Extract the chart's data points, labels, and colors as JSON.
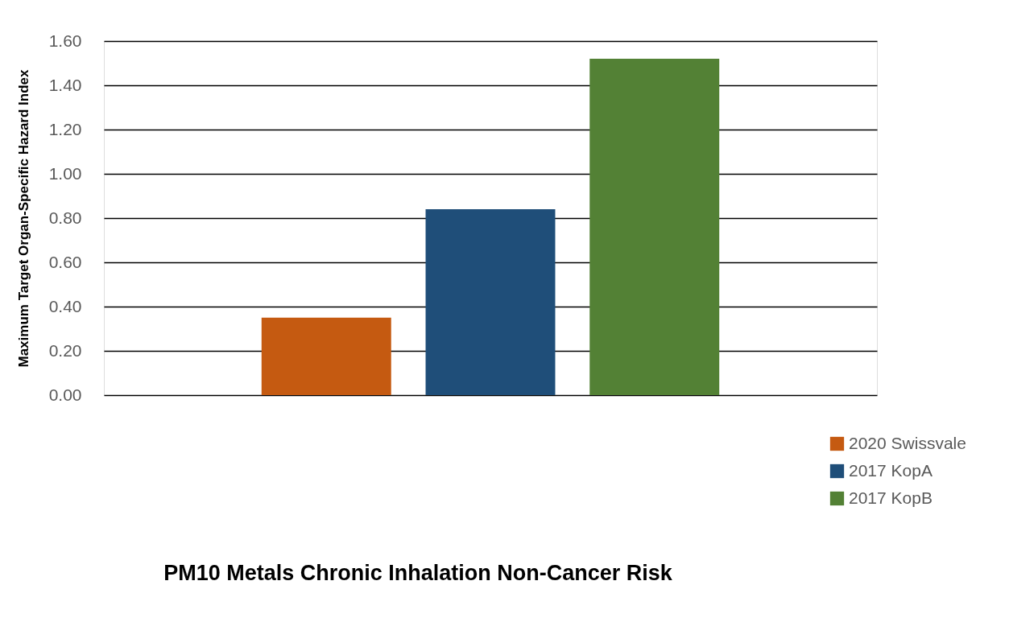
{
  "chart_data": {
    "type": "bar",
    "title": "PM10 Metals Chronic Inhalation Non-Cancer Risk",
    "ylabel": "Maximum Target Organ-Specific Hazard Index",
    "categories": [
      null
    ],
    "series": [
      {
        "name": "2020 Swissvale",
        "color": "#c55a11",
        "values": [
          0.35
        ]
      },
      {
        "name": "2017 KopA",
        "color": "#1f4e79",
        "values": [
          0.84
        ]
      },
      {
        "name": "2017 KopB",
        "color": "#538135",
        "values": [
          1.52
        ]
      }
    ],
    "ylim": [
      0,
      1.6
    ],
    "yticks": [
      {
        "value": 0,
        "label": "0.00"
      },
      {
        "value": 0.2,
        "label": "0.20"
      },
      {
        "value": 0.4,
        "label": "0.40"
      },
      {
        "value": 0.6,
        "label": "0.60"
      },
      {
        "value": 0.8,
        "label": "0.80"
      },
      {
        "value": 1.0,
        "label": "1.00"
      },
      {
        "value": 1.2,
        "label": "1.20"
      },
      {
        "value": 1.4,
        "label": "1.40"
      },
      {
        "value": 1.6,
        "label": "1.60"
      }
    ],
    "grid": "y",
    "legend": "bottom right",
    "tick_labels": "y"
  }
}
